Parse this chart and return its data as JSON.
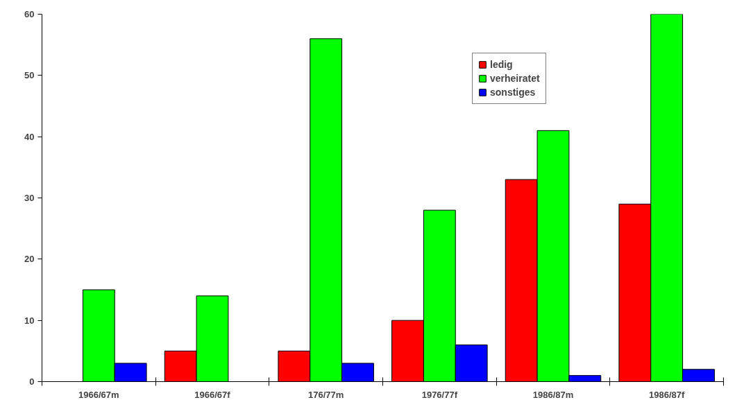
{
  "chart_data": {
    "type": "bar",
    "categories": [
      "1966/67m",
      "1966/67f",
      "176/77m",
      "1976/77f",
      "1986/87m",
      "1986/87f"
    ],
    "series": [
      {
        "name": "ledig",
        "color": "#ff0000",
        "values": [
          null,
          5,
          5,
          10,
          33,
          29
        ]
      },
      {
        "name": "verheiratet",
        "color": "#00ff00",
        "values": [
          15,
          14,
          56,
          28,
          41,
          60
        ]
      },
      {
        "name": "sonstiges",
        "color": "#0000ff",
        "values": [
          3,
          null,
          3,
          6,
          1,
          2
        ]
      }
    ],
    "ylim": [
      0,
      60
    ],
    "yticks": [
      0,
      10,
      20,
      30,
      40,
      50,
      60
    ],
    "grid": false,
    "legend": "top right"
  }
}
